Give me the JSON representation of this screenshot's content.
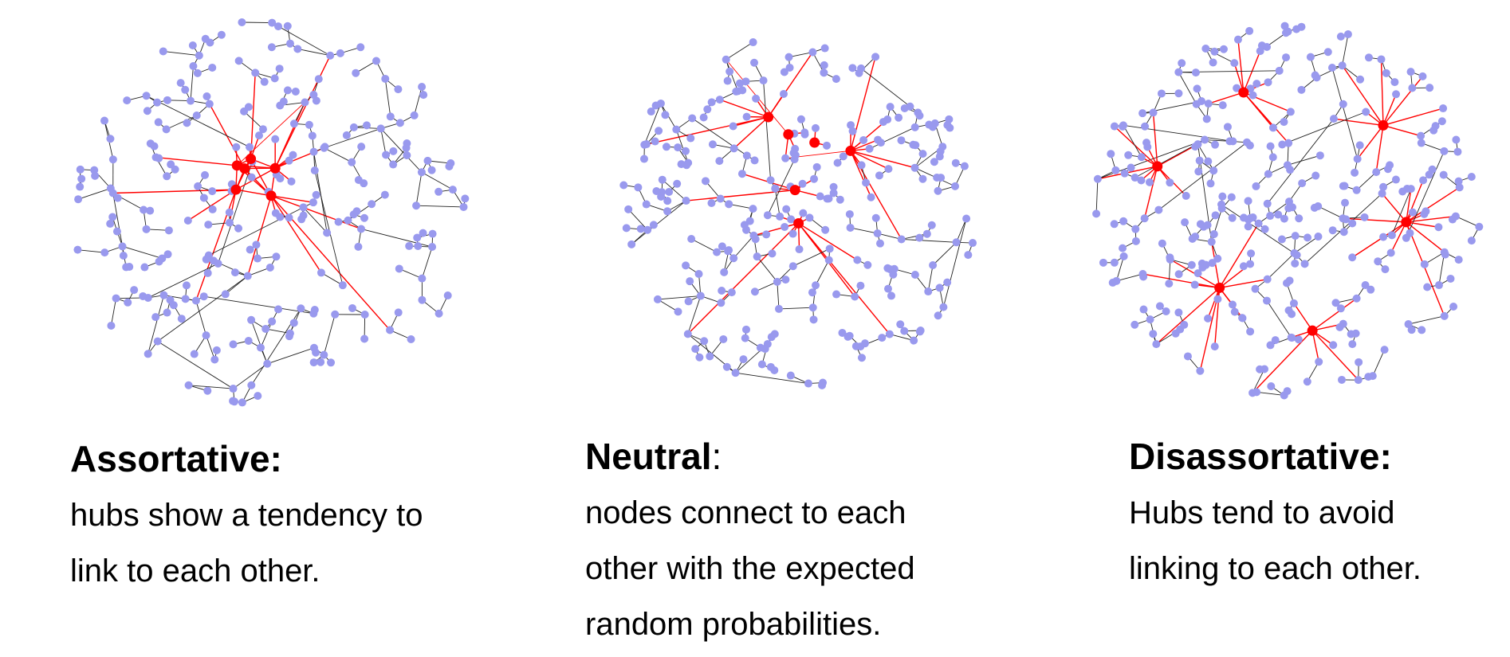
{
  "colors": {
    "node": "#9999ee",
    "hub": "#ff0000",
    "edge": "#222222",
    "hub_edge": "#ff0000"
  },
  "panels": [
    {
      "heading": "Assortative:",
      "heading_suffix": "",
      "description_lines": [
        "hubs show a tendency to",
        "link to each other."
      ],
      "network": {
        "node_count": 250,
        "hub_count": 6,
        "hub_arrangement": "clustered-center"
      }
    },
    {
      "heading": "Neutral",
      "heading_suffix": ":",
      "description_lines": [
        "nodes connect to each",
        "other with the expected",
        "random probabilities."
      ],
      "network": {
        "node_count": 260,
        "hub_count": 6,
        "hub_arrangement": "spread"
      }
    },
    {
      "heading": "Disassortative:",
      "heading_suffix": "",
      "description_lines": [
        "Hubs tend to avoid",
        "linking to each other."
      ],
      "network": {
        "node_count": 300,
        "hub_count": 6,
        "hub_arrangement": "periphery"
      }
    }
  ]
}
